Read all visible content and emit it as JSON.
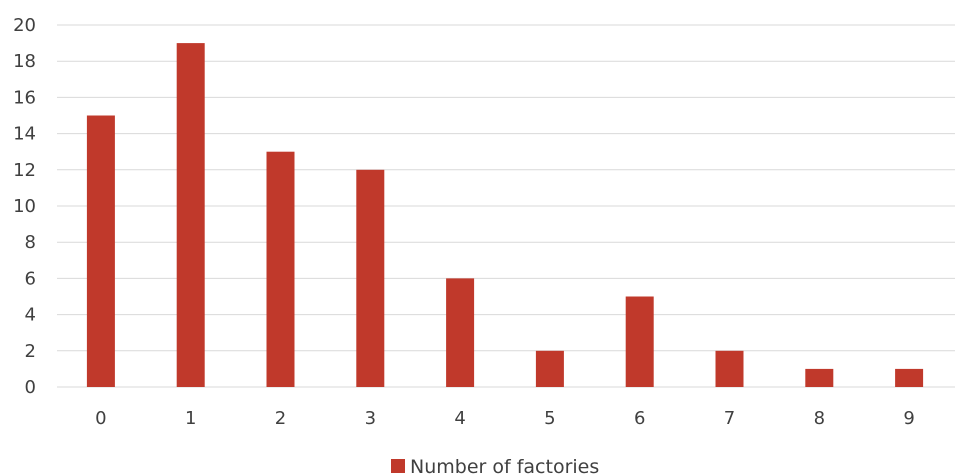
{
  "chart_data": {
    "type": "bar",
    "categories": [
      "0",
      "1",
      "2",
      "3",
      "4",
      "5",
      "6",
      "7",
      "8",
      "9"
    ],
    "series": [
      {
        "name": "Number of factories",
        "values": [
          15,
          19,
          13,
          12,
          6,
          2,
          5,
          2,
          1,
          1
        ],
        "color": "#c0392b"
      }
    ],
    "title": "",
    "xlabel": "",
    "ylabel": "",
    "ylim": [
      0,
      20
    ],
    "yticks": [
      0,
      2,
      4,
      6,
      8,
      10,
      12,
      14,
      16,
      18,
      20
    ],
    "grid": true,
    "legend_position": "bottom-center"
  }
}
